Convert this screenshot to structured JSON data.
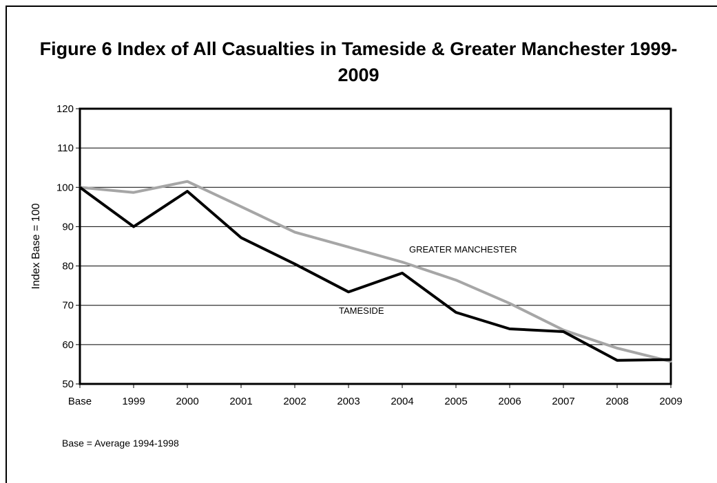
{
  "chart_data": {
    "type": "line",
    "title_line1": "Figure 6 Index of All Casualties in Tameside & Greater Manchester 1999-",
    "title_line2": "2009",
    "ylabel": "Index Base = 100",
    "categories": [
      "Base",
      "1999",
      "2000",
      "2001",
      "2002",
      "2003",
      "2004",
      "2005",
      "2006",
      "2007",
      "2008",
      "2009"
    ],
    "ylim": [
      50,
      120
    ],
    "yticks": [
      50,
      60,
      70,
      80,
      90,
      100,
      110,
      120
    ],
    "grid": true,
    "series": [
      {
        "name": "TAMESIDE",
        "color": "#000000",
        "values": [
          100,
          90,
          99,
          87.2,
          80.5,
          73.4,
          78.2,
          68.2,
          64,
          63.3,
          56,
          56.2
        ]
      },
      {
        "name": "GREATER MANCHESTER",
        "color": "#a6a6a6",
        "values": [
          100,
          98.7,
          101.5,
          95.1,
          88.6,
          84.8,
          81,
          76.4,
          70.5,
          63.7,
          59.1,
          55.7
        ]
      }
    ],
    "note": "Base = Average 1994-1998"
  }
}
